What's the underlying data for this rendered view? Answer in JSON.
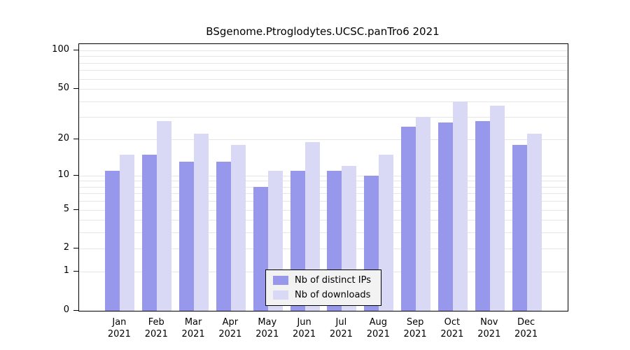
{
  "title": "BSgenome.Ptroglodytes.UCSC.panTro6 2021",
  "chart_data": {
    "type": "bar",
    "title": "BSgenome.Ptroglodytes.UCSC.panTro6 2021",
    "categories": [
      "Jan",
      "Feb",
      "Mar",
      "Apr",
      "May",
      "Jun",
      "Jul",
      "Aug",
      "Sep",
      "Oct",
      "Nov",
      "Dec"
    ],
    "category_year": "2021",
    "series": [
      {
        "name": "Nb of distinct IPs",
        "slug": "distinct-ips",
        "color": "#9797EC",
        "values": [
          11,
          15,
          13,
          13,
          8,
          11,
          11,
          10,
          25,
          27,
          28,
          18
        ]
      },
      {
        "name": "Nb of downloads",
        "slug": "downloads",
        "color": "#D9D9F6",
        "values": [
          15,
          28,
          22,
          18,
          11,
          19,
          12,
          15,
          30,
          40,
          37,
          22
        ]
      }
    ],
    "yscale": "log1p",
    "ylim": [
      0,
      100
    ],
    "yticks": [
      0,
      1,
      2,
      5,
      10,
      20,
      50,
      100
    ],
    "grid_values": [
      1,
      2,
      3,
      4,
      5,
      6,
      7,
      8,
      9,
      10,
      20,
      30,
      40,
      50,
      60,
      70,
      80,
      90,
      100
    ],
    "xlabel": "",
    "ylabel": "",
    "grid": "horizontal",
    "legend_position": "inside-bottom-center",
    "colors": {
      "axis": "#000000",
      "grid": "#E6E6E6",
      "legend_background": "#F2F2F2",
      "plot_background": "#FFFFFF"
    }
  }
}
